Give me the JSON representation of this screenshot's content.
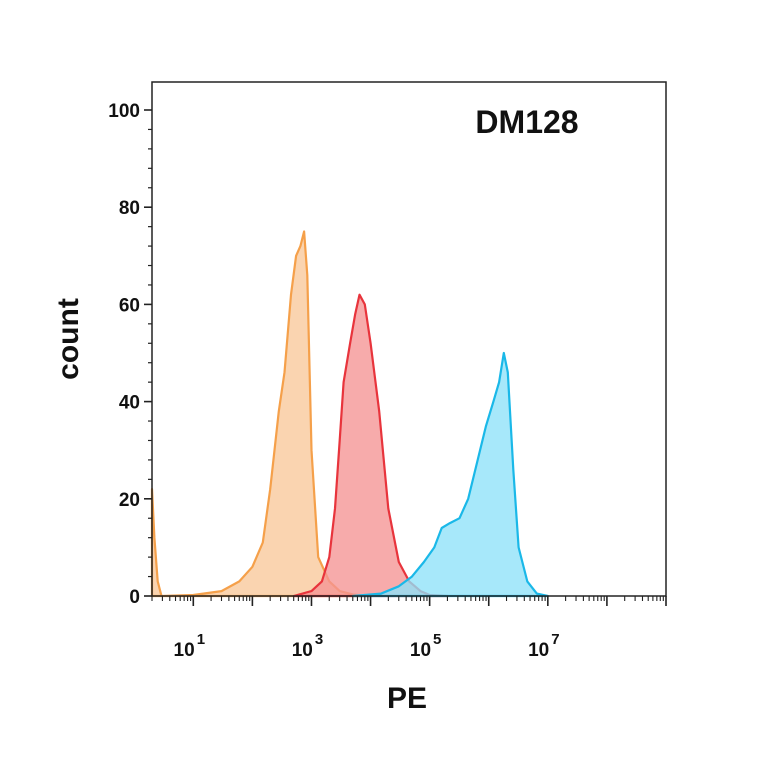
{
  "chart_data": {
    "type": "area",
    "title": "DM128",
    "xlabel": "PE",
    "ylabel": "count",
    "x_scale": "log",
    "xlim": [
      2,
      1000000000
    ],
    "ylim": [
      0,
      100
    ],
    "x_ticks": [
      {
        "base": "10",
        "exp": "1",
        "value": 10
      },
      {
        "base": "10",
        "exp": "3",
        "value": 1000
      },
      {
        "base": "10",
        "exp": "5",
        "value": 100000
      },
      {
        "base": "10",
        "exp": "7",
        "value": 10000000
      }
    ],
    "y_ticks": [
      "0",
      "20",
      "40",
      "60",
      "80",
      "100"
    ],
    "grid": false,
    "series": [
      {
        "color": "#f5a04a",
        "fill": "#f8c89a",
        "points": [
          [
            3,
            0
          ],
          [
            10,
            0.2
          ],
          [
            30,
            1
          ],
          [
            60,
            3
          ],
          [
            100,
            6
          ],
          [
            150,
            11
          ],
          [
            200,
            22
          ],
          [
            280,
            38
          ],
          [
            350,
            46
          ],
          [
            450,
            62
          ],
          [
            550,
            70
          ],
          [
            650,
            72
          ],
          [
            750,
            75
          ],
          [
            850,
            66
          ],
          [
            1000,
            30
          ],
          [
            1300,
            8
          ],
          [
            2000,
            3
          ],
          [
            3000,
            1
          ],
          [
            5000,
            0.3
          ],
          [
            10000,
            0
          ]
        ]
      },
      {
        "color": "#e8343c",
        "fill": "#f59393",
        "points": [
          [
            500,
            0
          ],
          [
            1000,
            1
          ],
          [
            1500,
            3
          ],
          [
            2000,
            8
          ],
          [
            2500,
            18
          ],
          [
            3000,
            32
          ],
          [
            3500,
            44
          ],
          [
            4500,
            52
          ],
          [
            5500,
            58
          ],
          [
            6500,
            62
          ],
          [
            8000,
            60
          ],
          [
            10000,
            52
          ],
          [
            14000,
            38
          ],
          [
            20000,
            18
          ],
          [
            30000,
            7
          ],
          [
            45000,
            3
          ],
          [
            70000,
            1
          ],
          [
            100000,
            0.2
          ],
          [
            200000,
            0
          ]
        ]
      },
      {
        "color": "#1ab8e8",
        "fill": "#8ee1f8",
        "points": [
          [
            5000,
            0
          ],
          [
            15000,
            0.5
          ],
          [
            30000,
            2
          ],
          [
            50000,
            4
          ],
          [
            80000,
            7
          ],
          [
            120000,
            10
          ],
          [
            160000,
            14
          ],
          [
            220000,
            15
          ],
          [
            320000,
            16
          ],
          [
            450000,
            20
          ],
          [
            650000,
            28
          ],
          [
            900000,
            35
          ],
          [
            1200000,
            40
          ],
          [
            1500000,
            44
          ],
          [
            1800000,
            50
          ],
          [
            2100000,
            46
          ],
          [
            2600000,
            26
          ],
          [
            3200000,
            10
          ],
          [
            4500000,
            3
          ],
          [
            6500000,
            0.5
          ],
          [
            10000000,
            0
          ]
        ]
      },
      {
        "color": "#f5a04a",
        "fill": "#f8c89a",
        "points": [
          [
            2,
            22
          ],
          [
            2.2,
            12
          ],
          [
            2.5,
            3
          ],
          [
            2.9,
            0
          ]
        ]
      }
    ]
  }
}
